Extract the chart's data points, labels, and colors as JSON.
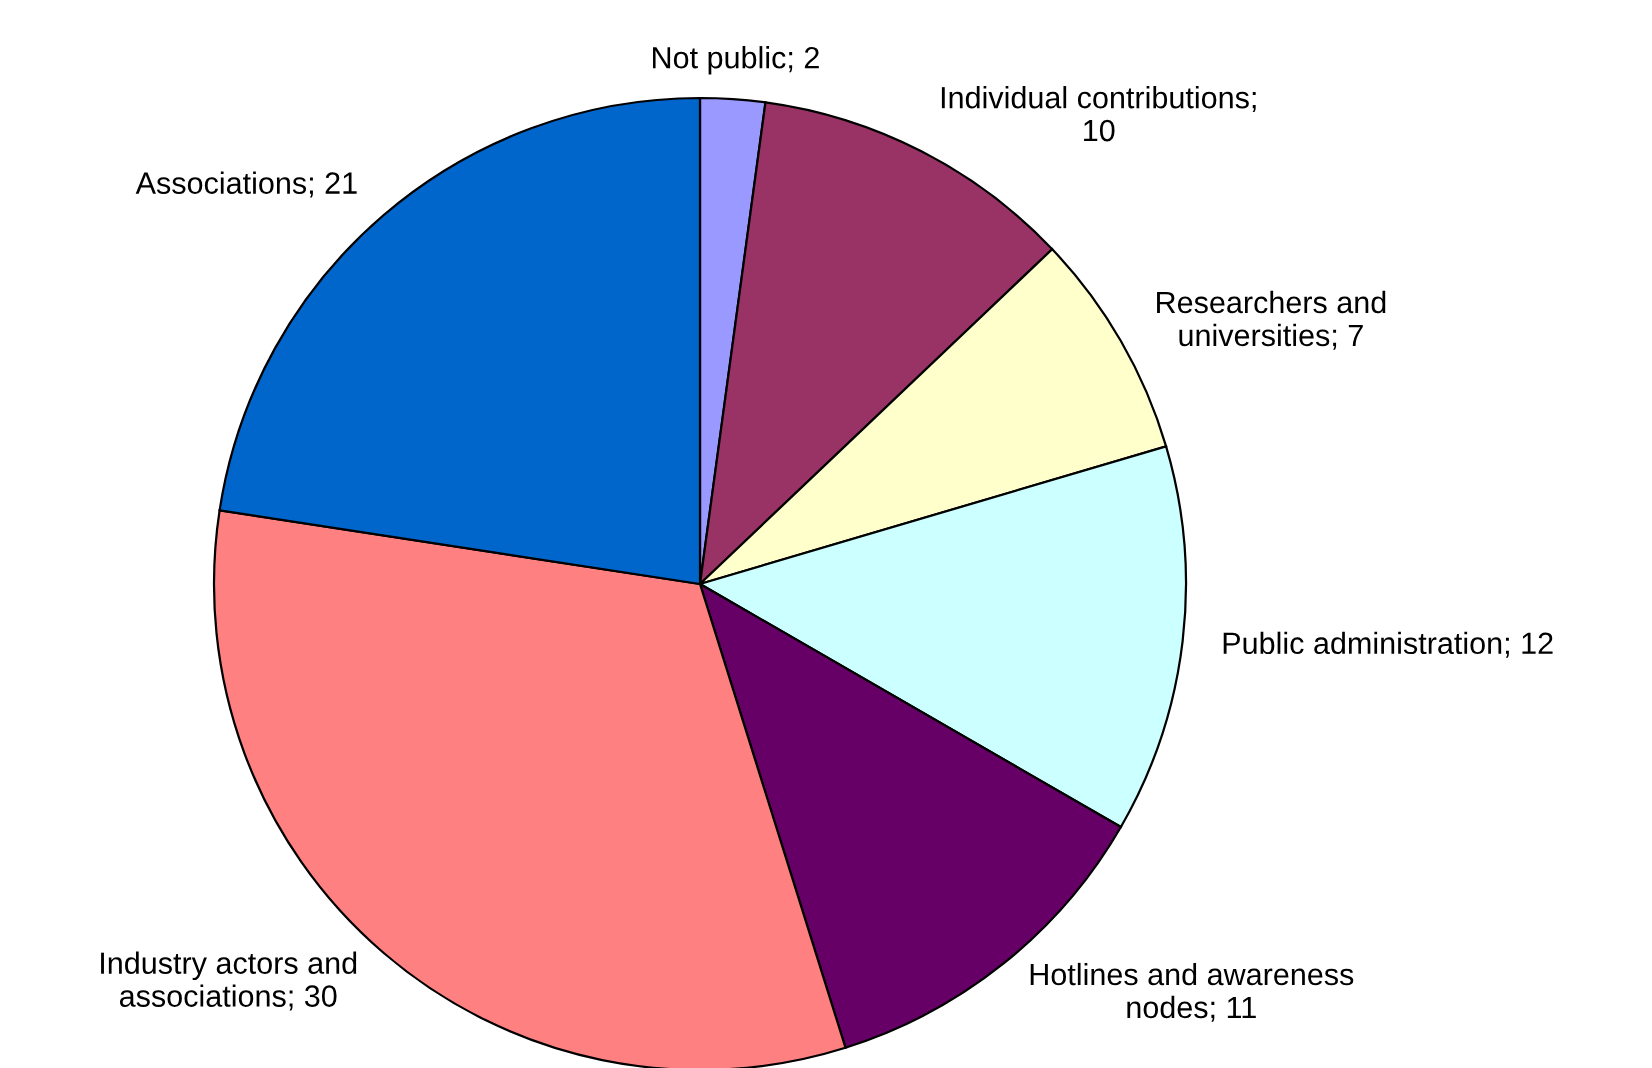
{
  "chart_data": {
    "type": "pie",
    "categories": [
      "Not public; 2",
      "Individual contributions;\n10",
      "Researchers and\nuniversities; 7",
      "Public administration; 12",
      "Hotlines and awareness\nnodes; 11",
      "Industry actors and\nassociations; 30",
      "Associations; 21"
    ],
    "values": [
      2,
      10,
      7,
      12,
      11,
      30,
      21
    ],
    "colors": [
      "#9999ff",
      "#993366",
      "#ffffcc",
      "#ccffff",
      "#660066",
      "#ff8080",
      "#0066cc"
    ]
  }
}
